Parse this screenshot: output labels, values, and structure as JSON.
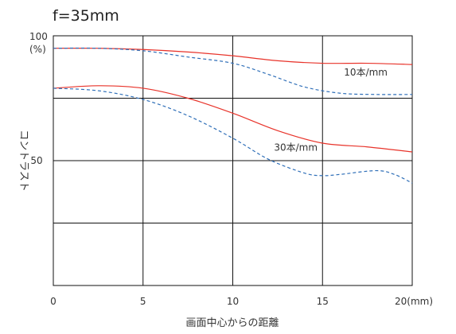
{
  "chart_data": {
    "type": "line",
    "title": "f=35mm",
    "xlabel": "画面中心からの距離",
    "ylabel": "コントラスト",
    "x_unit_label": "20(mm)",
    "y_top_label": "100",
    "y_unit_label": "(%)",
    "xlim": [
      0,
      20
    ],
    "ylim": [
      0,
      100
    ],
    "x_ticks": [
      0,
      5,
      10,
      15
    ],
    "y_ticks": [
      50
    ],
    "grid": true,
    "grid_x": [
      5,
      10,
      15
    ],
    "grid_y": [
      25,
      50,
      75
    ],
    "colors": {
      "solid": "#e8332a",
      "dashed": "#2f6fb8",
      "grid": "#111111"
    },
    "series": [
      {
        "name": "10本/mm",
        "style": "solid",
        "x": [
          0,
          2.5,
          5,
          7.5,
          10,
          12.5,
          15,
          17.5,
          20
        ],
        "y": [
          95,
          95,
          94.5,
          93.5,
          92,
          90,
          89,
          89,
          88.5
        ]
      },
      {
        "name": "10本/mm",
        "style": "dashed",
        "x": [
          0,
          2.5,
          5,
          7.5,
          10,
          12,
          14,
          16,
          18,
          20
        ],
        "y": [
          95,
          95,
          94,
          91.5,
          89,
          84.5,
          79.5,
          77,
          76.5,
          76.5
        ]
      },
      {
        "name": "30本/mm",
        "style": "solid",
        "x": [
          0,
          2.5,
          5,
          7.5,
          10,
          12.5,
          15,
          17.5,
          20
        ],
        "y": [
          79,
          80,
          79,
          75,
          69,
          62,
          57,
          55.5,
          53.5
        ]
      },
      {
        "name": "30本/mm",
        "style": "dashed",
        "x": [
          0,
          2.5,
          5,
          7.5,
          10,
          12,
          14,
          15,
          16,
          18,
          19,
          20
        ],
        "y": [
          79,
          78,
          74.5,
          68,
          59,
          50.5,
          45,
          44,
          44.5,
          46,
          44.5,
          41
        ]
      }
    ],
    "annotations": [
      {
        "text": "10本/mm",
        "x": 16.2,
        "y": 84
      },
      {
        "text": "30本/mm",
        "x": 12.3,
        "y": 54
      }
    ]
  }
}
